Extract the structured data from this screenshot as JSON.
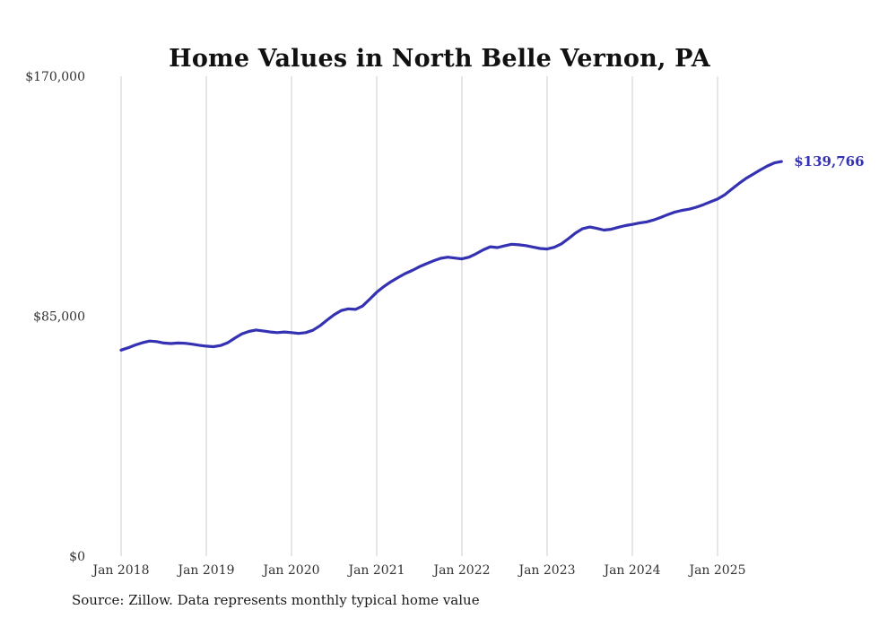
{
  "title": "Home Values in North Belle Vernon, PA",
  "source_note": "Source: Zillow. Data represents monthly typical home value",
  "end_label": "$139,766",
  "colors": {
    "line": "#3432b3",
    "annotation": "#3432b3",
    "grid": "#cccccc",
    "label": "#333333",
    "title": "#111111"
  },
  "chart_data": {
    "type": "line",
    "title": "Home Values in North Belle Vernon, PA",
    "xlabel": "",
    "ylabel": "",
    "ylim": [
      0,
      170000
    ],
    "grid": "vertical-only",
    "legend": false,
    "x_start": "Jan 2018",
    "x_end": "Oct 2025",
    "x_frequency": "monthly",
    "x_tick_labels": [
      "Jan 2018",
      "Jan 2019",
      "Jan 2020",
      "Jan 2021",
      "Jan 2022",
      "Jan 2023",
      "Jan 2024",
      "Jan 2025"
    ],
    "y_ticks": [
      {
        "label": "$0",
        "value": 0
      },
      {
        "label": "$85,000",
        "value": 85000
      },
      {
        "label": "$170,000",
        "value": 170000
      }
    ],
    "final_value": 139766,
    "series": [
      {
        "name": "Monthly typical home value",
        "values": [
          73000,
          73800,
          74800,
          75600,
          76200,
          76000,
          75500,
          75300,
          75500,
          75400,
          75100,
          74700,
          74400,
          74200,
          74600,
          75600,
          77200,
          78700,
          79600,
          80100,
          79800,
          79400,
          79200,
          79400,
          79200,
          78900,
          79200,
          80000,
          81600,
          83600,
          85500,
          87000,
          87600,
          87400,
          88600,
          91000,
          93500,
          95500,
          97200,
          98700,
          100100,
          101200,
          102500,
          103600,
          104600,
          105500,
          105900,
          105600,
          105300,
          105900,
          107100,
          108500,
          109600,
          109300,
          109900,
          110500,
          110300,
          110000,
          109500,
          109000,
          108800,
          109400,
          110600,
          112500,
          114500,
          116000,
          116600,
          116100,
          115500,
          115800,
          116500,
          117100,
          117500,
          118000,
          118400,
          119100,
          120000,
          121000,
          121900,
          122500,
          122900,
          123600,
          124500,
          125500,
          126500,
          128000,
          130000,
          132000,
          133800,
          135300,
          136800,
          138200,
          139300,
          139766
        ]
      }
    ]
  }
}
